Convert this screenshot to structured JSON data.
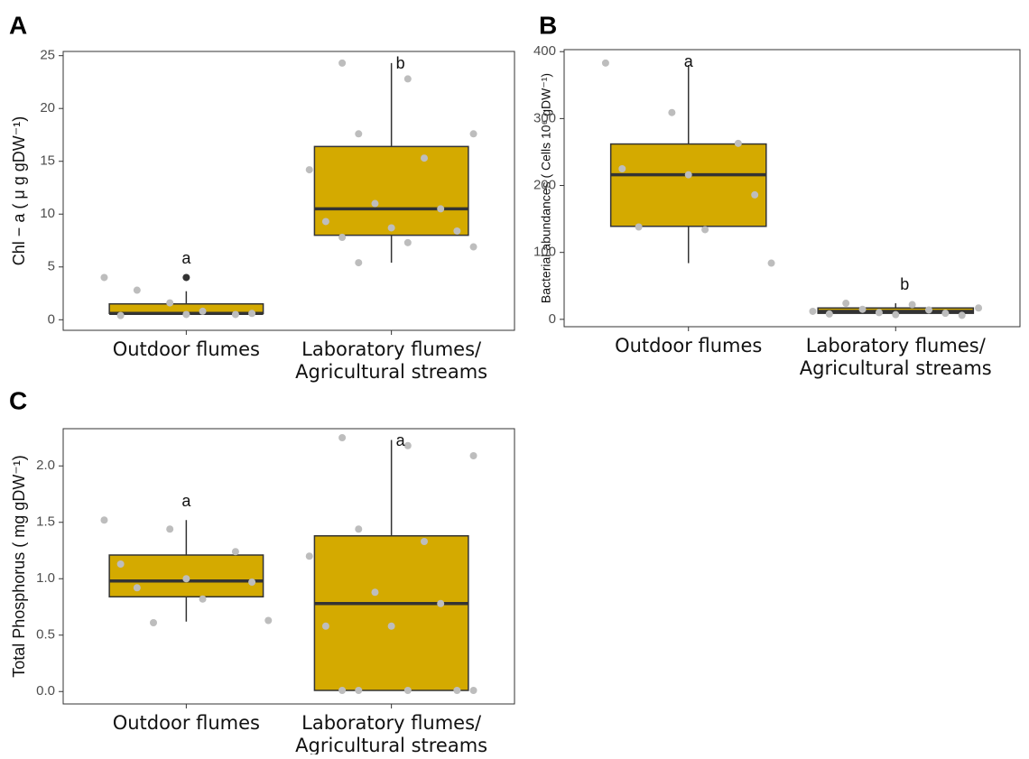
{
  "chart_data": [
    {
      "type": "box",
      "panel": "A",
      "ylabel": "Chl − a ( μ g gDW⁻¹)",
      "categories": [
        [
          "Outdoor flumes"
        ],
        [
          "Laboratory flumes/",
          "Agricultural streams"
        ]
      ],
      "color": "#d4aa00",
      "point_color": "#bdbdbd",
      "outlier_color": "#333333",
      "ylim": [
        -1,
        25.4
      ],
      "yticks": [
        0,
        5,
        10,
        15,
        20,
        25
      ],
      "boxes": [
        {
          "min": 0.4,
          "q1": 0.6,
          "median": 0.6,
          "q3": 1.5,
          "max": 2.7,
          "outliers": [
            4.0
          ],
          "letter": "a",
          "points": [
            4.0,
            1.6,
            0.5,
            0.4,
            0.5,
            0.6,
            2.8,
            0.8
          ]
        },
        {
          "min": 5.4,
          "q1": 8.0,
          "median": 10.5,
          "q3": 16.4,
          "max": 24.3,
          "outliers": [],
          "letter": "b",
          "points": [
            24.3,
            22.8,
            17.6,
            17.6,
            15.3,
            14.2,
            11.0,
            10.5,
            9.3,
            8.7,
            8.4,
            7.8,
            7.3,
            6.9,
            5.4
          ]
        }
      ]
    },
    {
      "type": "box",
      "panel": "B",
      "ylabel": "Bacterial abundances ( Cells 10⁶ gDW⁻¹)",
      "categories": [
        [
          "Outdoor flumes"
        ],
        [
          "Laboratory flumes/",
          "Agricultural streams"
        ]
      ],
      "color": "#d4aa00",
      "point_color": "#bdbdbd",
      "outlier_color": "#333333",
      "ylim": [
        -11,
        403
      ],
      "yticks": [
        0,
        100,
        200,
        300,
        400
      ],
      "boxes": [
        {
          "min": 84,
          "q1": 139,
          "median": 216,
          "q3": 262,
          "max": 380,
          "outliers": [],
          "letter": "a",
          "points": [
            383,
            309,
            263,
            225,
            216,
            186,
            138,
            134,
            84
          ]
        },
        {
          "min": 7,
          "q1": 9,
          "median": 12,
          "q3": 17,
          "max": 24,
          "outliers": [],
          "letter": "b",
          "points": [
            24,
            22,
            17,
            15,
            14,
            12,
            10,
            9,
            8,
            7,
            6
          ]
        }
      ]
    },
    {
      "type": "box",
      "panel": "C",
      "ylabel": "Total Phosphorus ( mg gDW⁻¹)",
      "categories": [
        [
          "Outdoor flumes"
        ],
        [
          "Laboratory flumes/",
          "Agricultural streams"
        ]
      ],
      "color": "#d4aa00",
      "point_color": "#bdbdbd",
      "outlier_color": "#333333",
      "ylim": [
        -0.11,
        2.33
      ],
      "yticks": [
        {
          "value": 0,
          "label": "0.0"
        },
        {
          "value": 0.5,
          "label": "0.5"
        },
        {
          "value": 1,
          "label": "1.0"
        },
        {
          "value": 1.5,
          "label": "1.5"
        },
        {
          "value": 2,
          "label": "2.0"
        }
      ],
      "boxes": [
        {
          "min": 0.62,
          "q1": 0.84,
          "median": 0.98,
          "q3": 1.21,
          "max": 1.52,
          "outliers": [],
          "letter": "a",
          "points": [
            1.52,
            1.44,
            1.24,
            1.13,
            1.0,
            0.97,
            0.92,
            0.82,
            0.63,
            0.61
          ]
        },
        {
          "min": 0.01,
          "q1": 0.01,
          "median": 0.78,
          "q3": 1.38,
          "max": 2.23,
          "outliers": [],
          "letter": "a",
          "points": [
            2.25,
            2.18,
            2.09,
            1.44,
            1.33,
            1.2,
            0.88,
            0.78,
            0.58,
            0.58,
            0.01,
            0.01,
            0.01,
            0.01,
            0.01
          ]
        }
      ]
    }
  ]
}
